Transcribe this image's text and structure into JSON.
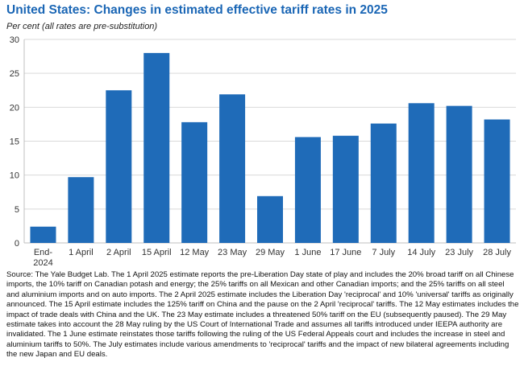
{
  "chart_data": {
    "type": "bar",
    "title": "United States: Changes in estimated effective tariff rates in 2025",
    "ylabel": "Per cent",
    "ylabel_note": "(all rates are pre-substitution)",
    "xlabel": "",
    "categories": [
      "End-2024",
      "1 April",
      "2 April",
      "15 April",
      "12 May",
      "23 May",
      "29 May",
      "1 June",
      "17 June",
      "7 July",
      "14 July",
      "23 July",
      "28 July"
    ],
    "category_lines": [
      [
        "End-",
        "2024"
      ],
      [
        "1 April"
      ],
      [
        "2 April"
      ],
      [
        "15 April"
      ],
      [
        "12 May"
      ],
      [
        "23 May"
      ],
      [
        "29 May"
      ],
      [
        "1 June"
      ],
      [
        "17 June"
      ],
      [
        "7 July"
      ],
      [
        "14 July"
      ],
      [
        "23 July"
      ],
      [
        "28 July"
      ]
    ],
    "values": [
      2.4,
      9.7,
      22.5,
      28.0,
      17.8,
      21.9,
      6.9,
      15.6,
      15.8,
      17.6,
      20.6,
      20.2,
      18.2
    ],
    "ylim": [
      0,
      30
    ],
    "yticks": [
      0,
      5,
      10,
      15,
      20,
      25,
      30
    ],
    "grid": true,
    "bar_color": "#1f6bb8"
  },
  "source": "Source: The Yale Budget Lab. The 1 April 2025 estimate reports the pre-Liberation Day state of play and includes the 20% broad tariff on all Chinese imports, the 10% tariff on Canadian potash and energy; the 25% tariffs on all Mexican and other Canadian imports; and the 25% tariffs on all steel and aluminium imports and on auto imports. The 2 April 2025 estimate includes the Liberation Day 'reciprocal' and 10% 'universal' tariffs as originally announced. The 15 April estimate includes the 125% tariff on China and the pause on the 2 April 'reciprocal' tariffs. The 12 May estimates includes the impact of trade deals with China and the UK. The 23 May estimate includes a threatened 50% tariff on the EU (subsequently paused). The 29 May estimate takes into account the 28 May ruling by the US Court of International Trade and assumes all tariffs introduced under IEEPA authority are invalidated. The 1 June estimate reinstates those tariffs following the ruling of the US Federal Appeals court and includes the increase in steel and aluminium tariffs to 50%. The July estimates include various amendments to 'reciprocal' tariffs and the impact of new bilateral agreements including the new Japan and EU deals."
}
